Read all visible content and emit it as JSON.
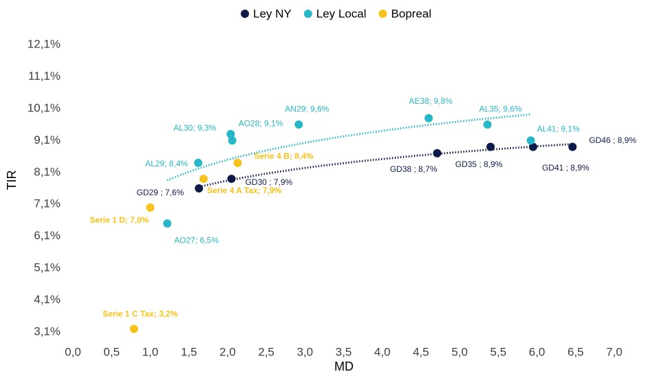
{
  "chart_data": {
    "type": "scatter",
    "x_label": "MD",
    "y_label": "TIR",
    "xlim": [
      0,
      7
    ],
    "ylim": [
      3.1,
      12.1
    ],
    "xticks": [
      {
        "value": 0,
        "label": "0,0"
      },
      {
        "value": 0.5,
        "label": "0,5"
      },
      {
        "value": 1,
        "label": "1,0"
      },
      {
        "value": 1.5,
        "label": "1,5"
      },
      {
        "value": 2,
        "label": "2,0"
      },
      {
        "value": 2.5,
        "label": "2,5"
      },
      {
        "value": 3,
        "label": "3,0"
      },
      {
        "value": 3.5,
        "label": "3,5"
      },
      {
        "value": 4,
        "label": "4,0"
      },
      {
        "value": 4.5,
        "label": "4,5"
      },
      {
        "value": 5,
        "label": "5,0"
      },
      {
        "value": 5.5,
        "label": "5,5"
      },
      {
        "value": 6,
        "label": "6,0"
      },
      {
        "value": 6.5,
        "label": "6,5"
      },
      {
        "value": 7,
        "label": "7,0"
      }
    ],
    "yticks": [
      {
        "value": 3.1,
        "label": "3,1%"
      },
      {
        "value": 4.1,
        "label": "4,1%"
      },
      {
        "value": 5.1,
        "label": "5,1%"
      },
      {
        "value": 6.1,
        "label": "6,1%"
      },
      {
        "value": 7.1,
        "label": "7,1%"
      },
      {
        "value": 8.1,
        "label": "8,1%"
      },
      {
        "value": 9.1,
        "label": "9,1%"
      },
      {
        "value": 10.1,
        "label": "10,1%"
      },
      {
        "value": 11.1,
        "label": "11,1%"
      },
      {
        "value": 12.1,
        "label": "12,1%"
      }
    ],
    "series": [
      {
        "name": "Ley NY",
        "color": "#0d1a4a",
        "trendline": true,
        "x": [
          1.63,
          2.05,
          4.71,
          5.4,
          5.95,
          6.46
        ],
        "values": [
          7.6,
          7.9,
          8.7,
          8.9,
          8.9,
          8.9
        ],
        "point_labels": [
          "GD29 ; 7,6%",
          "GD30 ; 7,9%",
          "GD38 ; 8,7%",
          "GD35 ; 8,9%",
          "GD41 ; 8,9%",
          "GD46 ; 8,9%"
        ]
      },
      {
        "name": "Ley Local",
        "color": "#28b7c9",
        "trendline": true,
        "x": [
          1.62,
          1.22,
          2.04,
          2.06,
          2.92,
          4.6,
          5.36,
          5.92
        ],
        "values": [
          8.4,
          6.5,
          9.3,
          9.1,
          9.6,
          9.8,
          9.6,
          9.1
        ],
        "point_labels": [
          "AL29; 8,4%",
          "AO27; 6,5%",
          "AL30; 9,3%",
          "AO28; 9,1%",
          "AN29; 9,6%",
          "AE38; 9,8%",
          "AL35; 9,6%",
          "AL41; 9,1%"
        ]
      },
      {
        "name": "Bopreal",
        "color": "#f7c21b",
        "trendline": false,
        "x": [
          0.79,
          1.0,
          1.69,
          2.13
        ],
        "values": [
          3.2,
          7.0,
          7.9,
          8.4
        ],
        "point_labels": [
          "Serie 1 C Tax; 3,2%",
          "Serie 1 D; 7,0%",
          "Serie 4 A Tax; 7,9%",
          "Serie 4 B; 8,4%"
        ]
      }
    ]
  }
}
